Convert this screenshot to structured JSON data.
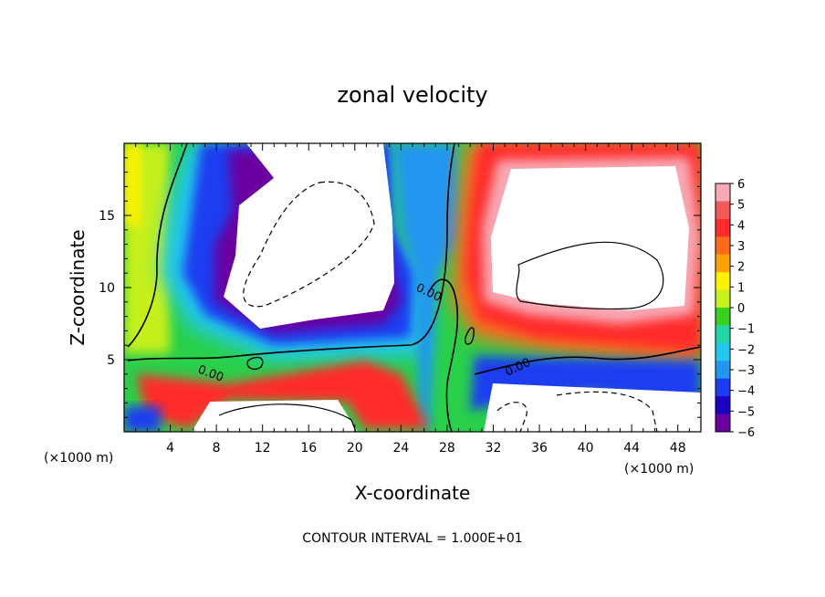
{
  "chart_data": {
    "type": "heatmap",
    "title": "zonal velocity",
    "xlabel": "X-coordinate",
    "ylabel": "Z-coordinate",
    "x_unit_label": "(×1000 m)",
    "xlim": [
      0,
      50
    ],
    "ylim": [
      0,
      20
    ],
    "x_ticks": [
      "4",
      "8",
      "12",
      "16",
      "20",
      "24",
      "28",
      "32",
      "36",
      "40",
      "44",
      "48"
    ],
    "y_ticks": [
      "5",
      "10",
      "15"
    ],
    "colorbar": {
      "min": -6,
      "max": 6,
      "labels": [
        "6",
        "5",
        "4",
        "3",
        "2",
        "1",
        "0",
        "−1",
        "−2",
        "−3",
        "−4",
        "−5",
        "−6"
      ],
      "colors": [
        "#f7a8b4",
        "#f25a5a",
        "#ff2a2a",
        "#ff6a1a",
        "#ffa000",
        "#fff000",
        "#c6f01e",
        "#39d01f",
        "#22d4a6",
        "#22c8f0",
        "#2496f0",
        "#1a3cf0",
        "#1a00c0",
        "#6a00a0"
      ]
    },
    "contour_labels": [
      "0.00",
      "0.00",
      "0.00"
    ],
    "contour_interval_note": "CONTOUR INTERVAL = 1.000E+01",
    "description_regions": [
      {
        "region": "white_negative_core",
        "sign": "negative",
        "x_range": [
          10,
          24
        ],
        "z_range": [
          7,
          20
        ]
      },
      {
        "region": "white_positive_core",
        "sign": "positive",
        "x_range": [
          31,
          50
        ],
        "z_range": [
          7,
          17
        ]
      }
    ]
  }
}
